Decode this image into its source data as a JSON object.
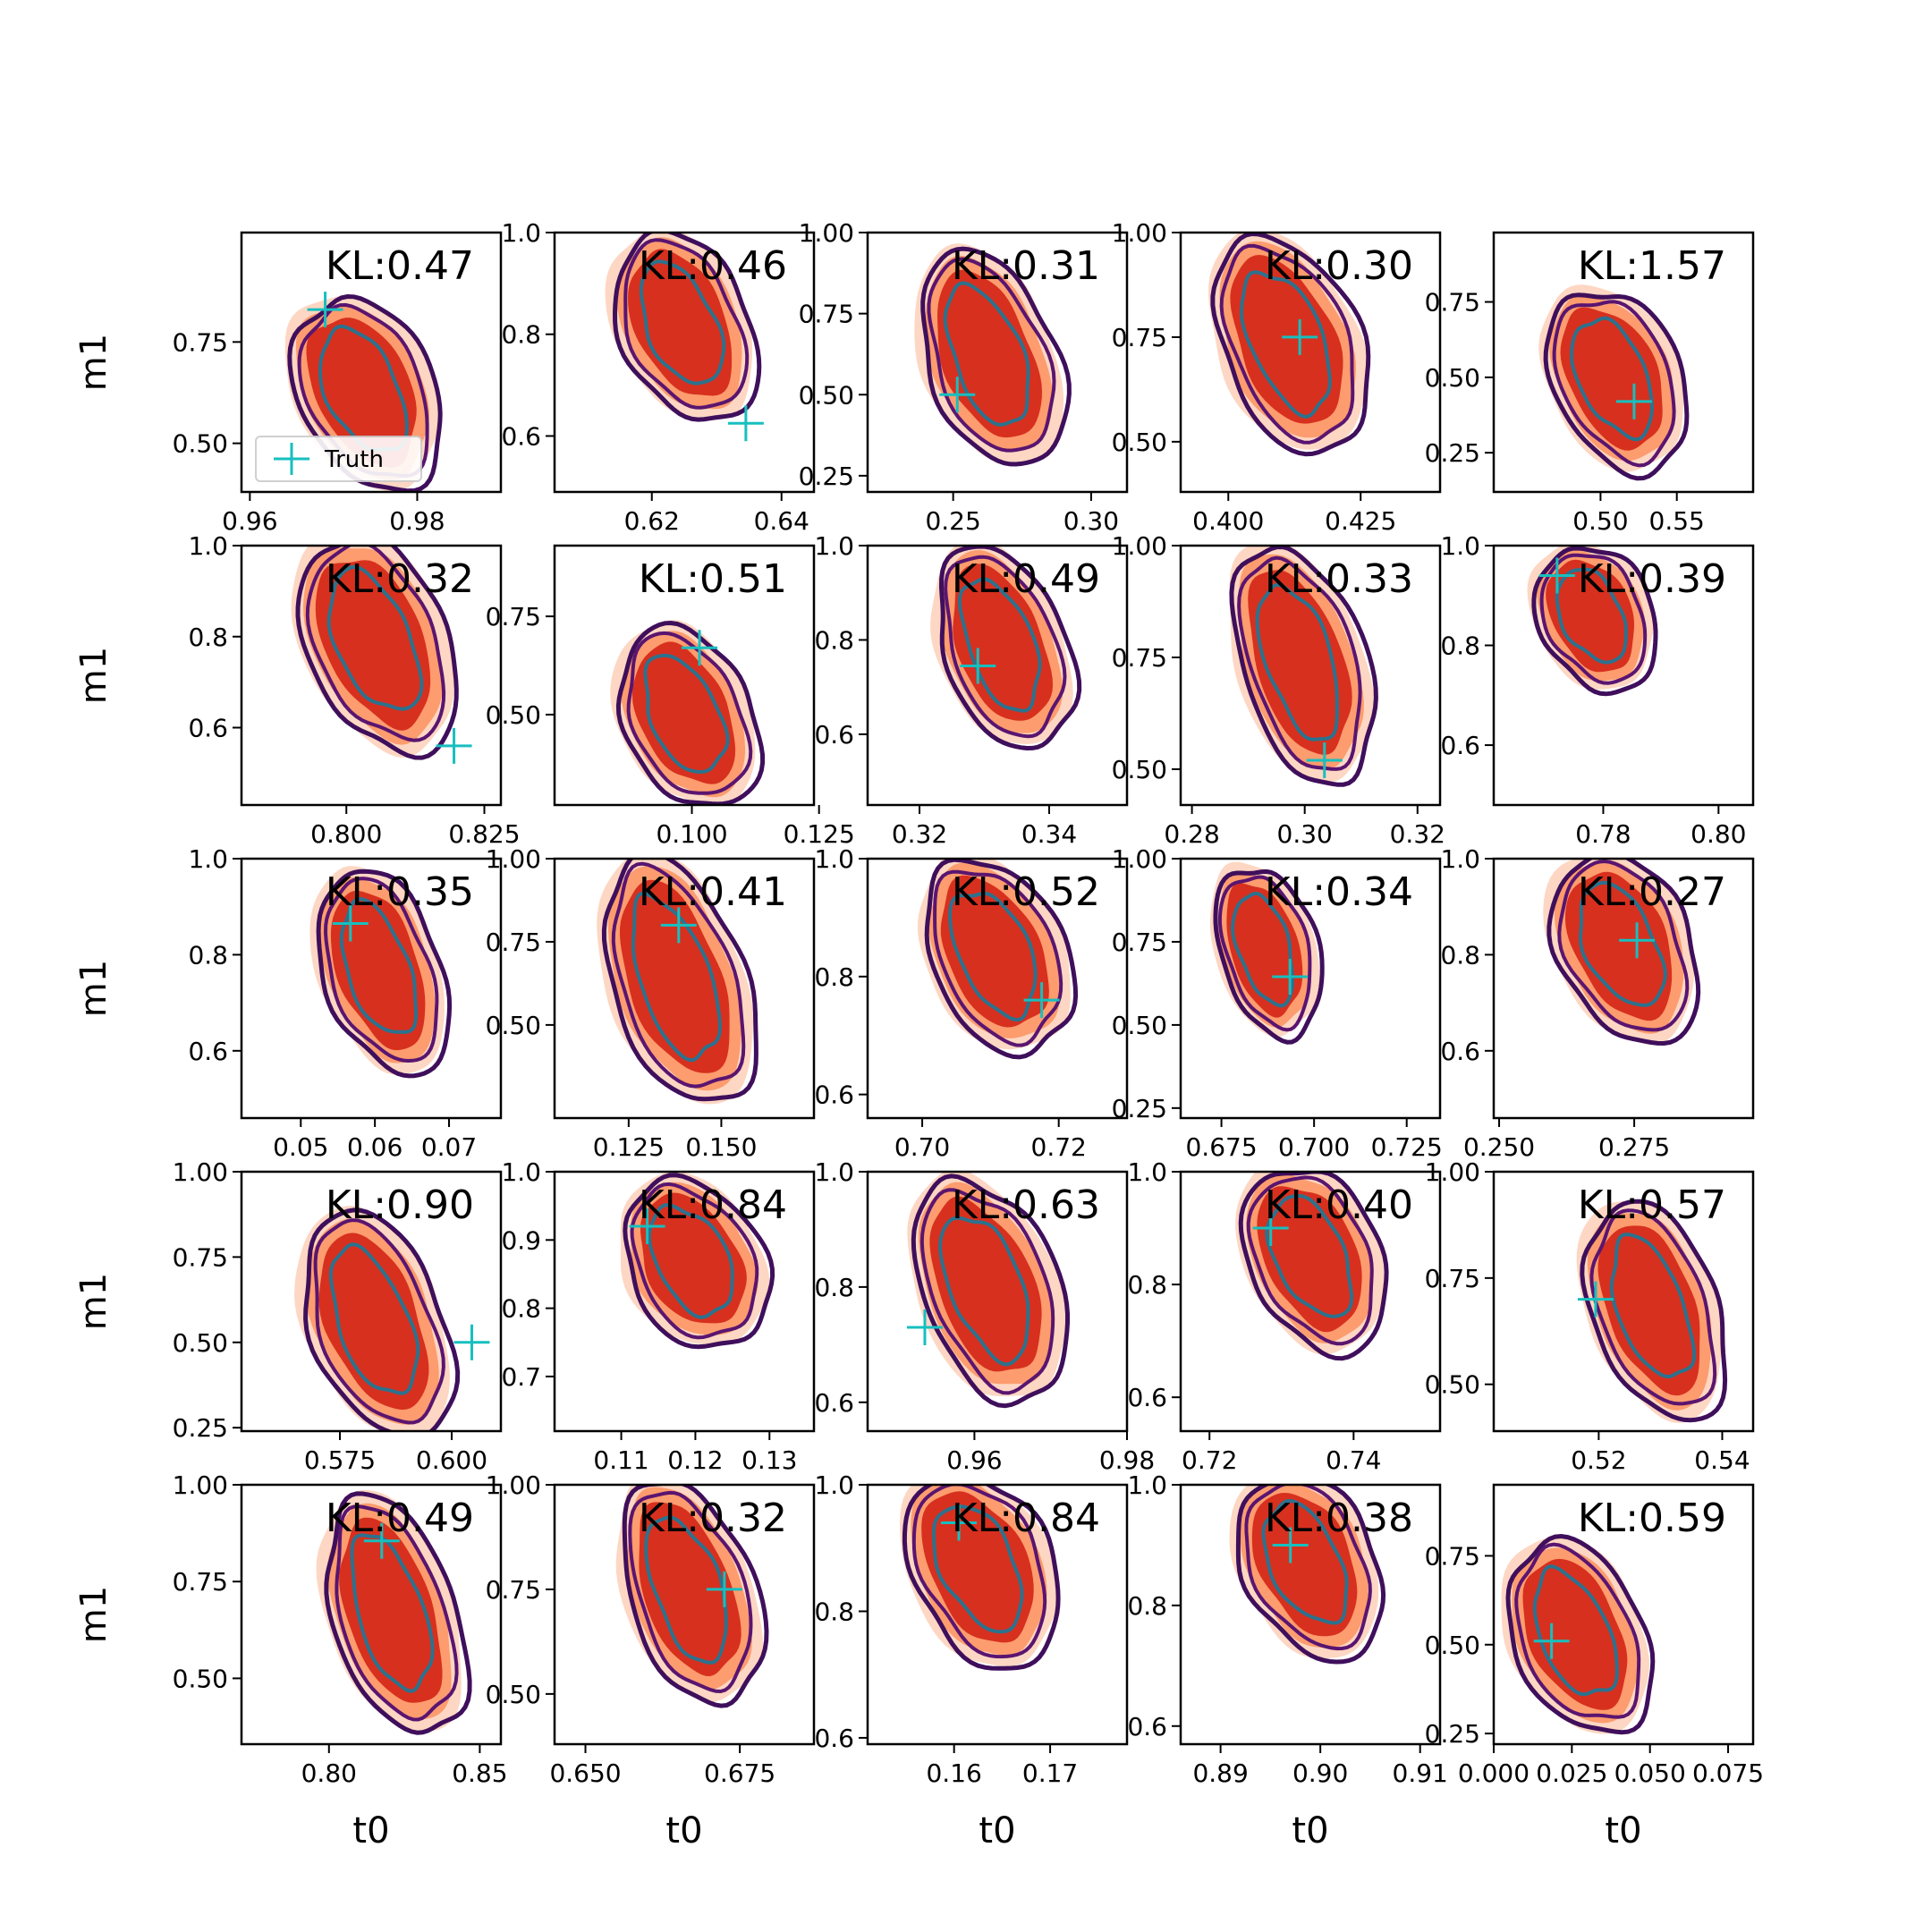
{
  "chart_data": {
    "type": "contour",
    "rows": 5,
    "cols": 5,
    "xlabel": "t0",
    "ylabel": "m1",
    "legend": {
      "label": "Truth",
      "placement": "lower-left",
      "panel": 0,
      "color": "#17bfbf"
    },
    "colors": {
      "fill_inner": "#d7301f",
      "fill_mid": "#fc8d59",
      "fill_outer": "#fdd0b8",
      "contour_outer": "#3f0f5c",
      "contour_mid": "#5a1570",
      "contour_inner": "#2c728e",
      "truth": "#17bfbf"
    },
    "panels": [
      {
        "kl": "KL:0.47",
        "xlim": [
          0.959,
          0.99
        ],
        "ylim": [
          0.38,
          1.02
        ],
        "xticks": [
          0.96,
          0.98
        ],
        "xtick_labels": [
          "0.96",
          "0.98"
        ],
        "yticks": [
          0.5,
          0.75
        ],
        "ytick_labels": [
          "0.50",
          "0.75"
        ],
        "truth": [
          0.969,
          0.83
        ],
        "center": [
          0.9735,
          0.63
        ],
        "spread": [
          0.01,
          0.43
        ],
        "tilt": -1
      },
      {
        "kl": "KL:0.46",
        "xlim": [
          0.605,
          0.645
        ],
        "ylim": [
          0.49,
          1.0
        ],
        "xticks": [
          0.62,
          0.64
        ],
        "xtick_labels": [
          "0.62",
          "0.64"
        ],
        "yticks": [
          0.6,
          0.8,
          1.0
        ],
        "ytick_labels": [
          "0.6",
          "0.8",
          "1.0"
        ],
        "truth": [
          0.6345,
          0.625
        ],
        "center": [
          0.6245,
          0.82
        ],
        "spread": [
          0.012,
          0.34
        ],
        "tilt": -1
      },
      {
        "kl": "KL:0.31",
        "xlim": [
          0.219,
          0.313
        ],
        "ylim": [
          0.2,
          1.0
        ],
        "xticks": [
          0.25,
          0.3
        ],
        "xtick_labels": [
          "0.25",
          "0.30"
        ],
        "yticks": [
          0.25,
          0.5,
          0.75,
          1.0
        ],
        "ytick_labels": [
          "0.25",
          "0.50",
          "0.75",
          "1.00"
        ],
        "truth": [
          0.2515,
          0.5
        ],
        "center": [
          0.2625,
          0.62
        ],
        "spread": [
          0.028,
          0.62
        ],
        "tilt": -1
      },
      {
        "kl": "KL:0.30",
        "xlim": [
          0.391,
          0.44
        ],
        "ylim": [
          0.38,
          1.0
        ],
        "xticks": [
          0.4,
          0.425
        ],
        "xtick_labels": [
          "0.400",
          "0.425"
        ],
        "yticks": [
          0.5,
          0.75,
          1.0
        ],
        "ytick_labels": [
          "0.50",
          "0.75",
          "1.00"
        ],
        "truth": [
          0.4135,
          0.75
        ],
        "center": [
          0.411,
          0.74
        ],
        "spread": [
          0.016,
          0.48
        ],
        "tilt": -1
      },
      {
        "kl": "KL:1.57",
        "xlim": [
          0.43,
          0.6
        ],
        "ylim": [
          0.12,
          0.98
        ],
        "xticks": [
          0.5,
          0.55
        ],
        "xtick_labels": [
          "0.50",
          "0.55"
        ],
        "yticks": [
          0.25,
          0.5,
          0.75
        ],
        "ytick_labels": [
          "0.25",
          "0.50",
          "0.75"
        ],
        "truth": [
          0.522,
          0.42
        ],
        "center": [
          0.508,
          0.5
        ],
        "spread": [
          0.05,
          0.55
        ],
        "tilt": -1
      },
      {
        "kl": "KL:0.32",
        "xlim": [
          0.781,
          0.828
        ],
        "ylim": [
          0.43,
          1.0
        ],
        "xticks": [
          0.8,
          0.825
        ],
        "xtick_labels": [
          "0.800",
          "0.825"
        ],
        "yticks": [
          0.6,
          0.8,
          1.0
        ],
        "ytick_labels": [
          "0.6",
          "0.8",
          "1.0"
        ],
        "truth": [
          0.8195,
          0.56
        ],
        "center": [
          0.805,
          0.79
        ],
        "spread": [
          0.016,
          0.44
        ],
        "tilt": -1
      },
      {
        "kl": "KL:0.51",
        "xlim": [
          0.073,
          0.124
        ],
        "ylim": [
          0.27,
          0.93
        ],
        "xticks": [
          0.1,
          0.125
        ],
        "xtick_labels": [
          "0.100",
          "0.125"
        ],
        "yticks": [
          0.5,
          0.75
        ],
        "ytick_labels": [
          "0.50",
          "0.75"
        ],
        "truth": [
          0.1015,
          0.67
        ],
        "center": [
          0.0985,
          0.5
        ],
        "spread": [
          0.015,
          0.42
        ],
        "tilt": -1
      },
      {
        "kl": "KL:0.49",
        "xlim": [
          0.312,
          0.352
        ],
        "ylim": [
          0.45,
          1.0
        ],
        "xticks": [
          0.32,
          0.34
        ],
        "xtick_labels": [
          "0.32",
          "0.34"
        ],
        "yticks": [
          0.6,
          0.8,
          1.0
        ],
        "ytick_labels": [
          "0.6",
          "0.8",
          "1.0"
        ],
        "truth": [
          0.329,
          0.745
        ],
        "center": [
          0.3325,
          0.79
        ],
        "spread": [
          0.011,
          0.4
        ],
        "tilt": -1
      },
      {
        "kl": "KL:0.33",
        "xlim": [
          0.278,
          0.324
        ],
        "ylim": [
          0.42,
          1.0
        ],
        "xticks": [
          0.28,
          0.3,
          0.32
        ],
        "xtick_labels": [
          "0.28",
          "0.30",
          "0.32"
        ],
        "yticks": [
          0.5,
          0.75,
          1.0
        ],
        "ytick_labels": [
          "0.50",
          "0.75",
          "1.00"
        ],
        "truth": [
          0.3035,
          0.52
        ],
        "center": [
          0.299,
          0.74
        ],
        "spread": [
          0.013,
          0.5
        ],
        "tilt": -1
      },
      {
        "kl": "KL:0.39",
        "xlim": [
          0.761,
          0.806
        ],
        "ylim": [
          0.48,
          1.0
        ],
        "xticks": [
          0.78,
          0.8
        ],
        "xtick_labels": [
          "0.78",
          "0.80"
        ],
        "yticks": [
          0.6,
          0.8,
          1.0
        ],
        "ytick_labels": [
          "0.6",
          "0.8",
          "1.0"
        ],
        "truth": [
          0.772,
          0.94
        ],
        "center": [
          0.778,
          0.86
        ],
        "spread": [
          0.011,
          0.26
        ],
        "tilt": -1
      },
      {
        "kl": "KL:0.35",
        "xlim": [
          0.042,
          0.077
        ],
        "ylim": [
          0.46,
          1.0
        ],
        "xticks": [
          0.05,
          0.06,
          0.07
        ],
        "xtick_labels": [
          "0.05",
          "0.06",
          "0.07"
        ],
        "yticks": [
          0.6,
          0.8,
          1.0
        ],
        "ytick_labels": [
          "0.6",
          "0.8",
          "1.0"
        ],
        "truth": [
          0.0567,
          0.865
        ],
        "center": [
          0.0605,
          0.77
        ],
        "spread": [
          0.009,
          0.4
        ],
        "tilt": -1
      },
      {
        "kl": "KL:0.41",
        "xlim": [
          0.105,
          0.175
        ],
        "ylim": [
          0.22,
          1.0
        ],
        "xticks": [
          0.125,
          0.15
        ],
        "xtick_labels": [
          "0.125",
          "0.150"
        ],
        "yticks": [
          0.5,
          0.75,
          1.0
        ],
        "ytick_labels": [
          "0.50",
          "0.75",
          "1.00"
        ],
        "truth": [
          0.1385,
          0.8
        ],
        "center": [
          0.1375,
          0.64
        ],
        "spread": [
          0.022,
          0.7
        ],
        "tilt": -1
      },
      {
        "kl": "KL:0.52",
        "xlim": [
          0.692,
          0.73
        ],
        "ylim": [
          0.56,
          1.0
        ],
        "xticks": [
          0.7,
          0.72
        ],
        "xtick_labels": [
          "0.70",
          "0.72"
        ],
        "yticks": [
          0.6,
          0.8,
          1.0
        ],
        "ytick_labels": [
          "0.6",
          "0.8",
          "1.0"
        ],
        "truth": [
          0.7175,
          0.76
        ],
        "center": [
          0.7105,
          0.84
        ],
        "spread": [
          0.012,
          0.3
        ],
        "tilt": -1
      },
      {
        "kl": "KL:0.34",
        "xlim": [
          0.664,
          0.734
        ],
        "ylim": [
          0.22,
          1.0
        ],
        "xticks": [
          0.675,
          0.7,
          0.725
        ],
        "xtick_labels": [
          "0.675",
          "0.700",
          "0.725"
        ],
        "yticks": [
          0.25,
          0.5,
          0.75,
          1.0
        ],
        "ytick_labels": [
          "0.25",
          "0.50",
          "0.75",
          "1.00"
        ],
        "truth": [
          0.6935,
          0.645
        ],
        "center": [
          0.6865,
          0.73
        ],
        "spread": [
          0.013,
          0.48
        ],
        "tilt": -1
      },
      {
        "kl": "KL:0.27",
        "xlim": [
          0.249,
          0.297
        ],
        "ylim": [
          0.46,
          1.0
        ],
        "xticks": [
          0.25,
          0.275
        ],
        "xtick_labels": [
          "0.250",
          "0.275"
        ],
        "yticks": [
          0.6,
          0.8,
          1.0
        ],
        "ytick_labels": [
          "0.6",
          "0.8",
          "1.0"
        ],
        "truth": [
          0.2755,
          0.83
        ],
        "center": [
          0.2725,
          0.82
        ],
        "spread": [
          0.015,
          0.36
        ],
        "tilt": -1
      },
      {
        "kl": "KL:0.90",
        "xlim": [
          0.553,
          0.611
        ],
        "ylim": [
          0.24,
          1.0
        ],
        "xticks": [
          0.575,
          0.6
        ],
        "xtick_labels": [
          "0.575",
          "0.600"
        ],
        "yticks": [
          0.25,
          0.5,
          0.75,
          1.0
        ],
        "ytick_labels": [
          "0.25",
          "0.50",
          "0.75",
          "1.00"
        ],
        "truth": [
          0.6045,
          0.5
        ],
        "center": [
          0.5825,
          0.56
        ],
        "spread": [
          0.018,
          0.62
        ],
        "tilt": -1
      },
      {
        "kl": "KL:0.84",
        "xlim": [
          0.101,
          0.136
        ],
        "ylim": [
          0.62,
          1.0
        ],
        "xticks": [
          0.11,
          0.12,
          0.13
        ],
        "xtick_labels": [
          "0.11",
          "0.12",
          "0.13"
        ],
        "yticks": [
          0.7,
          0.8,
          0.9,
          1.0
        ],
        "ytick_labels": [
          "0.7",
          "0.8",
          "0.9",
          "1.0"
        ],
        "truth": [
          0.1135,
          0.92
        ],
        "center": [
          0.1195,
          0.87
        ],
        "spread": [
          0.011,
          0.22
        ],
        "tilt": -1
      },
      {
        "kl": "KL:0.63",
        "xlim": [
          0.946,
          0.98
        ],
        "ylim": [
          0.55,
          1.0
        ],
        "xticks": [
          0.96,
          0.98
        ],
        "xtick_labels": [
          "0.96",
          "0.98"
        ],
        "yticks": [
          0.6,
          0.8,
          1.0
        ],
        "ytick_labels": [
          "0.6",
          "0.8",
          "1.0"
        ],
        "truth": [
          0.9535,
          0.73
        ],
        "center": [
          0.9615,
          0.8
        ],
        "spread": [
          0.011,
          0.36
        ],
        "tilt": -1
      },
      {
        "kl": "KL:0.40",
        "xlim": [
          0.716,
          0.752
        ],
        "ylim": [
          0.54,
          1.0
        ],
        "xticks": [
          0.72,
          0.74
        ],
        "xtick_labels": [
          "0.72",
          "0.74"
        ],
        "yticks": [
          0.6,
          0.8,
          1.0
        ],
        "ytick_labels": [
          "0.6",
          "0.8",
          "1.0"
        ],
        "truth": [
          0.7285,
          0.9
        ],
        "center": [
          0.734,
          0.85
        ],
        "spread": [
          0.011,
          0.3
        ],
        "tilt": -1
      },
      {
        "kl": "KL:0.57",
        "xlim": [
          0.503,
          0.545
        ],
        "ylim": [
          0.39,
          1.0
        ],
        "xticks": [
          0.52,
          0.54
        ],
        "xtick_labels": [
          "0.52",
          "0.54"
        ],
        "yticks": [
          0.5,
          0.75,
          1.0
        ],
        "ytick_labels": [
          "0.50",
          "0.75",
          "1.00"
        ],
        "truth": [
          0.5195,
          0.7
        ],
        "center": [
          0.5285,
          0.68
        ],
        "spread": [
          0.012,
          0.48
        ],
        "tilt": -1
      },
      {
        "kl": "KL:0.49",
        "xlim": [
          0.771,
          0.857
        ],
        "ylim": [
          0.33,
          1.0
        ],
        "xticks": [
          0.8,
          0.85
        ],
        "xtick_labels": [
          "0.80",
          "0.85"
        ],
        "yticks": [
          0.5,
          0.75,
          1.0
        ],
        "ytick_labels": [
          "0.50",
          "0.75",
          "1.00"
        ],
        "truth": [
          0.8175,
          0.855
        ],
        "center": [
          0.8205,
          0.67
        ],
        "spread": [
          0.024,
          0.58
        ],
        "tilt": -1
      },
      {
        "kl": "KL:0.32",
        "xlim": [
          0.645,
          0.687
        ],
        "ylim": [
          0.38,
          1.0
        ],
        "xticks": [
          0.65,
          0.675
        ],
        "xtick_labels": [
          "0.650",
          "0.675"
        ],
        "yticks": [
          0.5,
          0.75,
          1.0
        ],
        "ytick_labels": [
          "0.50",
          "0.75",
          "1.00"
        ],
        "truth": [
          0.6725,
          0.75
        ],
        "center": [
          0.6665,
          0.75
        ],
        "spread": [
          0.012,
          0.5
        ],
        "tilt": -1
      },
      {
        "kl": "KL:0.84",
        "xlim": [
          0.151,
          0.178
        ],
        "ylim": [
          0.59,
          1.0
        ],
        "xticks": [
          0.16,
          0.17
        ],
        "xtick_labels": [
          "0.16",
          "0.17"
        ],
        "yticks": [
          0.6,
          0.8,
          1.0
        ],
        "ytick_labels": [
          "0.6",
          "0.8",
          "1.0"
        ],
        "truth": [
          0.1605,
          0.94
        ],
        "center": [
          0.1625,
          0.87
        ],
        "spread": [
          0.009,
          0.28
        ],
        "tilt": -1
      },
      {
        "kl": "KL:0.38",
        "xlim": [
          0.886,
          0.912
        ],
        "ylim": [
          0.57,
          1.0
        ],
        "xticks": [
          0.89,
          0.9,
          0.91
        ],
        "xtick_labels": [
          "0.89",
          "0.90",
          "0.91"
        ],
        "yticks": [
          0.6,
          0.8,
          1.0
        ],
        "ytick_labels": [
          "0.6",
          "0.8",
          "1.0"
        ],
        "truth": [
          0.897,
          0.9
        ],
        "center": [
          0.8985,
          0.87
        ],
        "spread": [
          0.008,
          0.28
        ],
        "tilt": -1
      },
      {
        "kl": "KL:0.59",
        "xlim": [
          0.0,
          0.083
        ],
        "ylim": [
          0.22,
          0.95
        ],
        "xticks": [
          0.0,
          0.025,
          0.05,
          0.075
        ],
        "xtick_labels": [
          "0.000",
          "0.025",
          "0.050",
          "0.075"
        ],
        "yticks": [
          0.25,
          0.5,
          0.75
        ],
        "ytick_labels": [
          "0.25",
          "0.50",
          "0.75"
        ],
        "truth": [
          0.0185,
          0.51
        ],
        "center": [
          0.026,
          0.53
        ],
        "spread": [
          0.025,
          0.5
        ],
        "tilt": -1
      }
    ]
  }
}
